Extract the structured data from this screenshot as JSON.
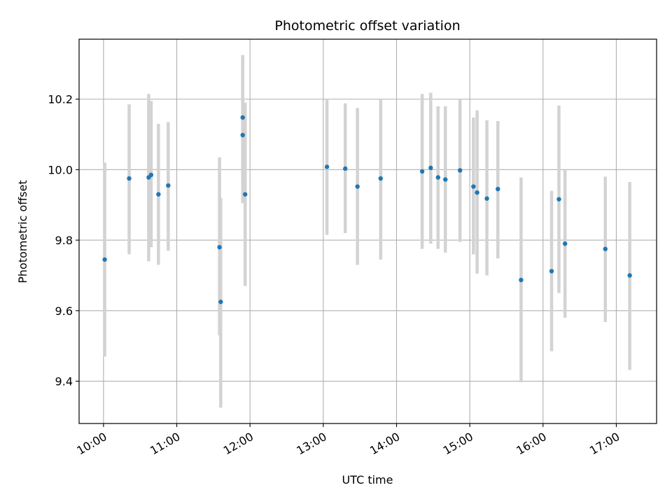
{
  "chart_data": {
    "type": "scatter",
    "title": "Photometric offset variation",
    "xlabel": "UTC time",
    "ylabel": "Photometric offset",
    "x_ticks": [
      "10:00",
      "11:00",
      "12:00",
      "13:00",
      "14:00",
      "15:00",
      "16:00",
      "17:00"
    ],
    "y_ticks": [
      "9.4",
      "9.6",
      "9.8",
      "10.0",
      "10.2"
    ],
    "xlim": [
      "09:40",
      "17:33"
    ],
    "ylim": [
      9.28,
      10.37
    ],
    "grid": true,
    "colors": {
      "point": "#1f77b4",
      "errorbar": "#d3d3d3",
      "grid": "#b0b0b0"
    },
    "points": [
      {
        "t": "10:01",
        "y": 9.745,
        "ylo": 9.47,
        "yhi": 10.02
      },
      {
        "t": "10:21",
        "y": 9.975,
        "ylo": 9.76,
        "yhi": 10.185
      },
      {
        "t": "10:37",
        "y": 9.978,
        "ylo": 9.74,
        "yhi": 10.215
      },
      {
        "t": "10:39",
        "y": 9.985,
        "ylo": 9.78,
        "yhi": 10.195
      },
      {
        "t": "10:45",
        "y": 9.93,
        "ylo": 9.73,
        "yhi": 10.13
      },
      {
        "t": "10:53",
        "y": 9.955,
        "ylo": 9.77,
        "yhi": 10.135
      },
      {
        "t": "11:35",
        "y": 9.78,
        "ylo": 9.53,
        "yhi": 10.035
      },
      {
        "t": "11:36",
        "y": 9.625,
        "ylo": 9.325,
        "yhi": 9.92
      },
      {
        "t": "11:54",
        "y": 10.148,
        "ylo": 9.97,
        "yhi": 10.325
      },
      {
        "t": "11:54",
        "y": 10.098,
        "ylo": 9.905,
        "yhi": 10.3
      },
      {
        "t": "11:56",
        "y": 9.93,
        "ylo": 9.67,
        "yhi": 10.19
      },
      {
        "t": "13:03",
        "y": 10.008,
        "ylo": 9.815,
        "yhi": 10.2
      },
      {
        "t": "13:18",
        "y": 10.003,
        "ylo": 9.82,
        "yhi": 10.188
      },
      {
        "t": "13:28",
        "y": 9.952,
        "ylo": 9.73,
        "yhi": 10.175
      },
      {
        "t": "13:47",
        "y": 9.975,
        "ylo": 9.745,
        "yhi": 10.2
      },
      {
        "t": "14:21",
        "y": 9.995,
        "ylo": 9.775,
        "yhi": 10.215
      },
      {
        "t": "14:28",
        "y": 10.005,
        "ylo": 9.79,
        "yhi": 10.218
      },
      {
        "t": "14:34",
        "y": 9.978,
        "ylo": 9.775,
        "yhi": 10.18
      },
      {
        "t": "14:40",
        "y": 9.972,
        "ylo": 9.765,
        "yhi": 10.18
      },
      {
        "t": "14:52",
        "y": 9.998,
        "ylo": 9.795,
        "yhi": 10.2
      },
      {
        "t": "15:03",
        "y": 9.952,
        "ylo": 9.76,
        "yhi": 10.148
      },
      {
        "t": "15:06",
        "y": 9.935,
        "ylo": 9.705,
        "yhi": 10.168
      },
      {
        "t": "15:14",
        "y": 9.918,
        "ylo": 9.7,
        "yhi": 10.14
      },
      {
        "t": "15:23",
        "y": 9.945,
        "ylo": 9.748,
        "yhi": 10.138
      },
      {
        "t": "15:42",
        "y": 9.687,
        "ylo": 9.397,
        "yhi": 9.978
      },
      {
        "t": "16:07",
        "y": 9.712,
        "ylo": 9.485,
        "yhi": 9.94
      },
      {
        "t": "16:13",
        "y": 9.916,
        "ylo": 9.65,
        "yhi": 10.182
      },
      {
        "t": "16:18",
        "y": 9.79,
        "ylo": 9.58,
        "yhi": 10.0
      },
      {
        "t": "16:51",
        "y": 9.775,
        "ylo": 9.568,
        "yhi": 9.98
      },
      {
        "t": "17:11",
        "y": 9.7,
        "ylo": 9.432,
        "yhi": 9.965
      }
    ]
  }
}
